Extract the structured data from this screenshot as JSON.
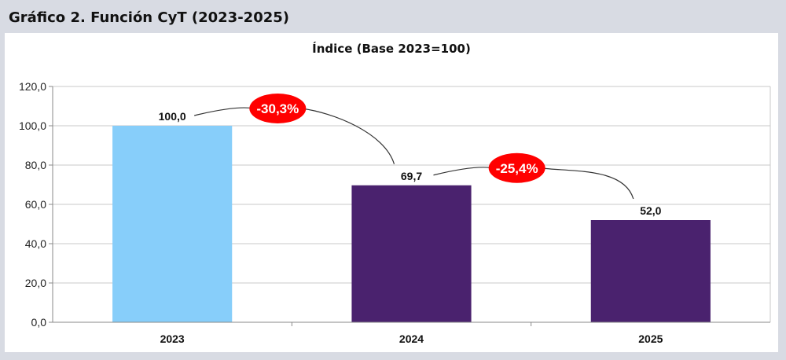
{
  "header": {
    "title": "Gráfico 2. Función CyT (2023-2025)"
  },
  "colors": {
    "page_background": "#d8dbe3",
    "plot_background": "#ffffff",
    "bar_2023": "#87cefa",
    "bar_other": "#4a226e",
    "callout": "#ff0000",
    "gridline": "#c8c8c8"
  },
  "chart_data": {
    "type": "bar",
    "title": "Índice (Base 2023=100)",
    "categories": [
      "2023",
      "2024",
      "2025"
    ],
    "values": [
      100.0,
      69.7,
      52.0
    ],
    "value_labels": [
      "100,0",
      "69,7",
      "52,0"
    ],
    "bar_colors": [
      "#87cefa",
      "#4a226e",
      "#4a226e"
    ],
    "ylim": [
      0,
      120
    ],
    "yticks": [
      "0,0",
      "20,0",
      "40,0",
      "60,0",
      "80,0",
      "100,0",
      "120,0"
    ],
    "xlabel": "",
    "ylabel": "",
    "grid": true,
    "legend": false,
    "annotations": [
      {
        "text": "-30,3%",
        "from": "2023",
        "to": "2024",
        "style": "red-oval"
      },
      {
        "text": "-25,4%",
        "from": "2024",
        "to": "2025",
        "style": "red-oval"
      }
    ]
  }
}
